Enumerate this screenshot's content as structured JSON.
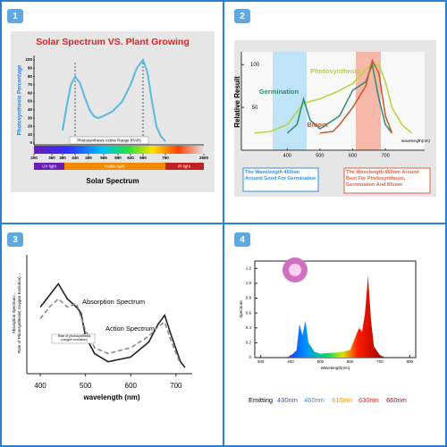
{
  "panels": [
    "1",
    "2",
    "3",
    "4"
  ],
  "chart_data": [
    {
      "type": "line",
      "title": "Solar Spectrum VS. Plant Growing",
      "ylabel": "Photosynthesis Percentage",
      "xlabel": "Solar Spectrum",
      "annotations": [
        "Photosynthesis Active Range (PAR)"
      ],
      "bands": [
        "UV light",
        "Visible light",
        "IR light"
      ],
      "xticks": [
        200,
        360,
        380,
        440,
        495,
        565,
        590,
        620,
        660,
        760,
        2500
      ],
      "ylim": [
        0,
        100
      ],
      "yticks": [
        0,
        10,
        20,
        30,
        40,
        50,
        60,
        70,
        80,
        90,
        100
      ],
      "color": "#5bb8e0",
      "x": [
        380,
        400,
        420,
        440,
        460,
        480,
        500,
        520,
        540,
        560,
        580,
        600,
        620,
        640,
        660,
        680,
        700,
        720,
        740,
        760
      ],
      "values": [
        15,
        45,
        70,
        80,
        72,
        55,
        40,
        32,
        30,
        32,
        38,
        50,
        70,
        90,
        100,
        85,
        50,
        20,
        8,
        2
      ]
    },
    {
      "type": "line",
      "ylabel": "Relative Result",
      "xlabel": "wavelength(nm)",
      "xlim": [
        260,
        820
      ],
      "ylim": [
        0,
        115
      ],
      "xticks": [
        400,
        500,
        600,
        700
      ],
      "yticks": [
        50,
        100
      ],
      "series": [
        {
          "name": "Photosynthesis",
          "color": "#b5d334",
          "x": [
            300,
            350,
            400,
            450,
            500,
            550,
            600,
            650,
            680,
            700,
            720,
            750,
            780
          ],
          "values": [
            20,
            22,
            30,
            55,
            60,
            68,
            78,
            98,
            100,
            80,
            50,
            30,
            20
          ]
        },
        {
          "name": "Germination",
          "color": "#2e8b6e",
          "x": [
            400,
            430,
            450,
            470,
            500,
            520,
            560,
            600,
            640,
            660,
            680,
            700,
            720
          ],
          "values": [
            20,
            30,
            60,
            35,
            25,
            30,
            40,
            70,
            80,
            100,
            60,
            30,
            20
          ]
        },
        {
          "name": "Bloom",
          "color": "#c9572a",
          "x": [
            500,
            540,
            560,
            600,
            640,
            660,
            680,
            700,
            720
          ],
          "values": [
            20,
            22,
            30,
            50,
            75,
            105,
            90,
            40,
            20
          ]
        }
      ],
      "annotations": [
        "The Wavelength 450nm Around Good For Germination",
        "The Wavelength 660nm Around Best For Photosynthesis, Germination And Bloom"
      ]
    },
    {
      "type": "line",
      "ylabel": [
        "Absorption Spectrum→",
        "Rate of Photosynthesis( Oxygen Evolution)→"
      ],
      "xlabel": "wavelength (nm)",
      "xlim": [
        390,
        730
      ],
      "ylim": [
        0,
        1
      ],
      "xticks": [
        400,
        500,
        600,
        700
      ],
      "series": [
        {
          "name": "Absorption Spectrum",
          "color": "#222222",
          "x": [
            400,
            420,
            440,
            460,
            480,
            490,
            500,
            520,
            550,
            600,
            640,
            660,
            675,
            690,
            710,
            720
          ],
          "values": [
            0.55,
            0.65,
            0.75,
            0.62,
            0.55,
            0.5,
            0.3,
            0.15,
            0.08,
            0.12,
            0.25,
            0.4,
            0.48,
            0.3,
            0.08,
            0.03
          ]
        },
        {
          "name": "Action Spectrum",
          "color": "#888888",
          "dashed": true,
          "x": [
            400,
            420,
            440,
            460,
            480,
            500,
            520,
            550,
            600,
            640,
            660,
            675,
            690,
            710
          ],
          "values": [
            0.45,
            0.55,
            0.62,
            0.55,
            0.58,
            0.35,
            0.2,
            0.15,
            0.2,
            0.3,
            0.38,
            0.42,
            0.25,
            0.06
          ]
        }
      ],
      "annotations": [
        "Rate of photosynthesis (oxygen evolution)"
      ]
    },
    {
      "type": "area",
      "ylabel": "Spectrum",
      "xlabel": "Wavelength(nm)",
      "xlim": [
        280,
        820
      ],
      "ylim": [
        0,
        1.3
      ],
      "xticks": [
        300,
        400,
        500,
        600,
        700,
        800
      ],
      "yticks": [
        0,
        0.2,
        0.4,
        0.6,
        0.8,
        {
          "value": 1,
          "label": "1.0"
        },
        1.2
      ],
      "x": [
        380,
        400,
        420,
        430,
        440,
        450,
        460,
        480,
        500,
        520,
        560,
        600,
        620,
        630,
        640,
        650,
        660,
        670,
        680,
        700,
        720
      ],
      "values": [
        0,
        0.02,
        0.1,
        0.45,
        0.3,
        0.5,
        0.2,
        0.08,
        0.05,
        0.06,
        0.07,
        0.1,
        0.3,
        0.4,
        0.35,
        0.6,
        1.1,
        0.5,
        0.15,
        0.03,
        0
      ],
      "legend_title": "Emitting",
      "legend": [
        {
          "label": "430nm",
          "color": "#2a4fd8"
        },
        {
          "label": "460nm",
          "color": "#2a8fe0"
        },
        {
          "label": "610nm",
          "color": "#f08a00"
        },
        {
          "label": "630nm",
          "color": "#e02020"
        },
        {
          "label": "660nm",
          "color": "#c00000"
        }
      ]
    }
  ]
}
